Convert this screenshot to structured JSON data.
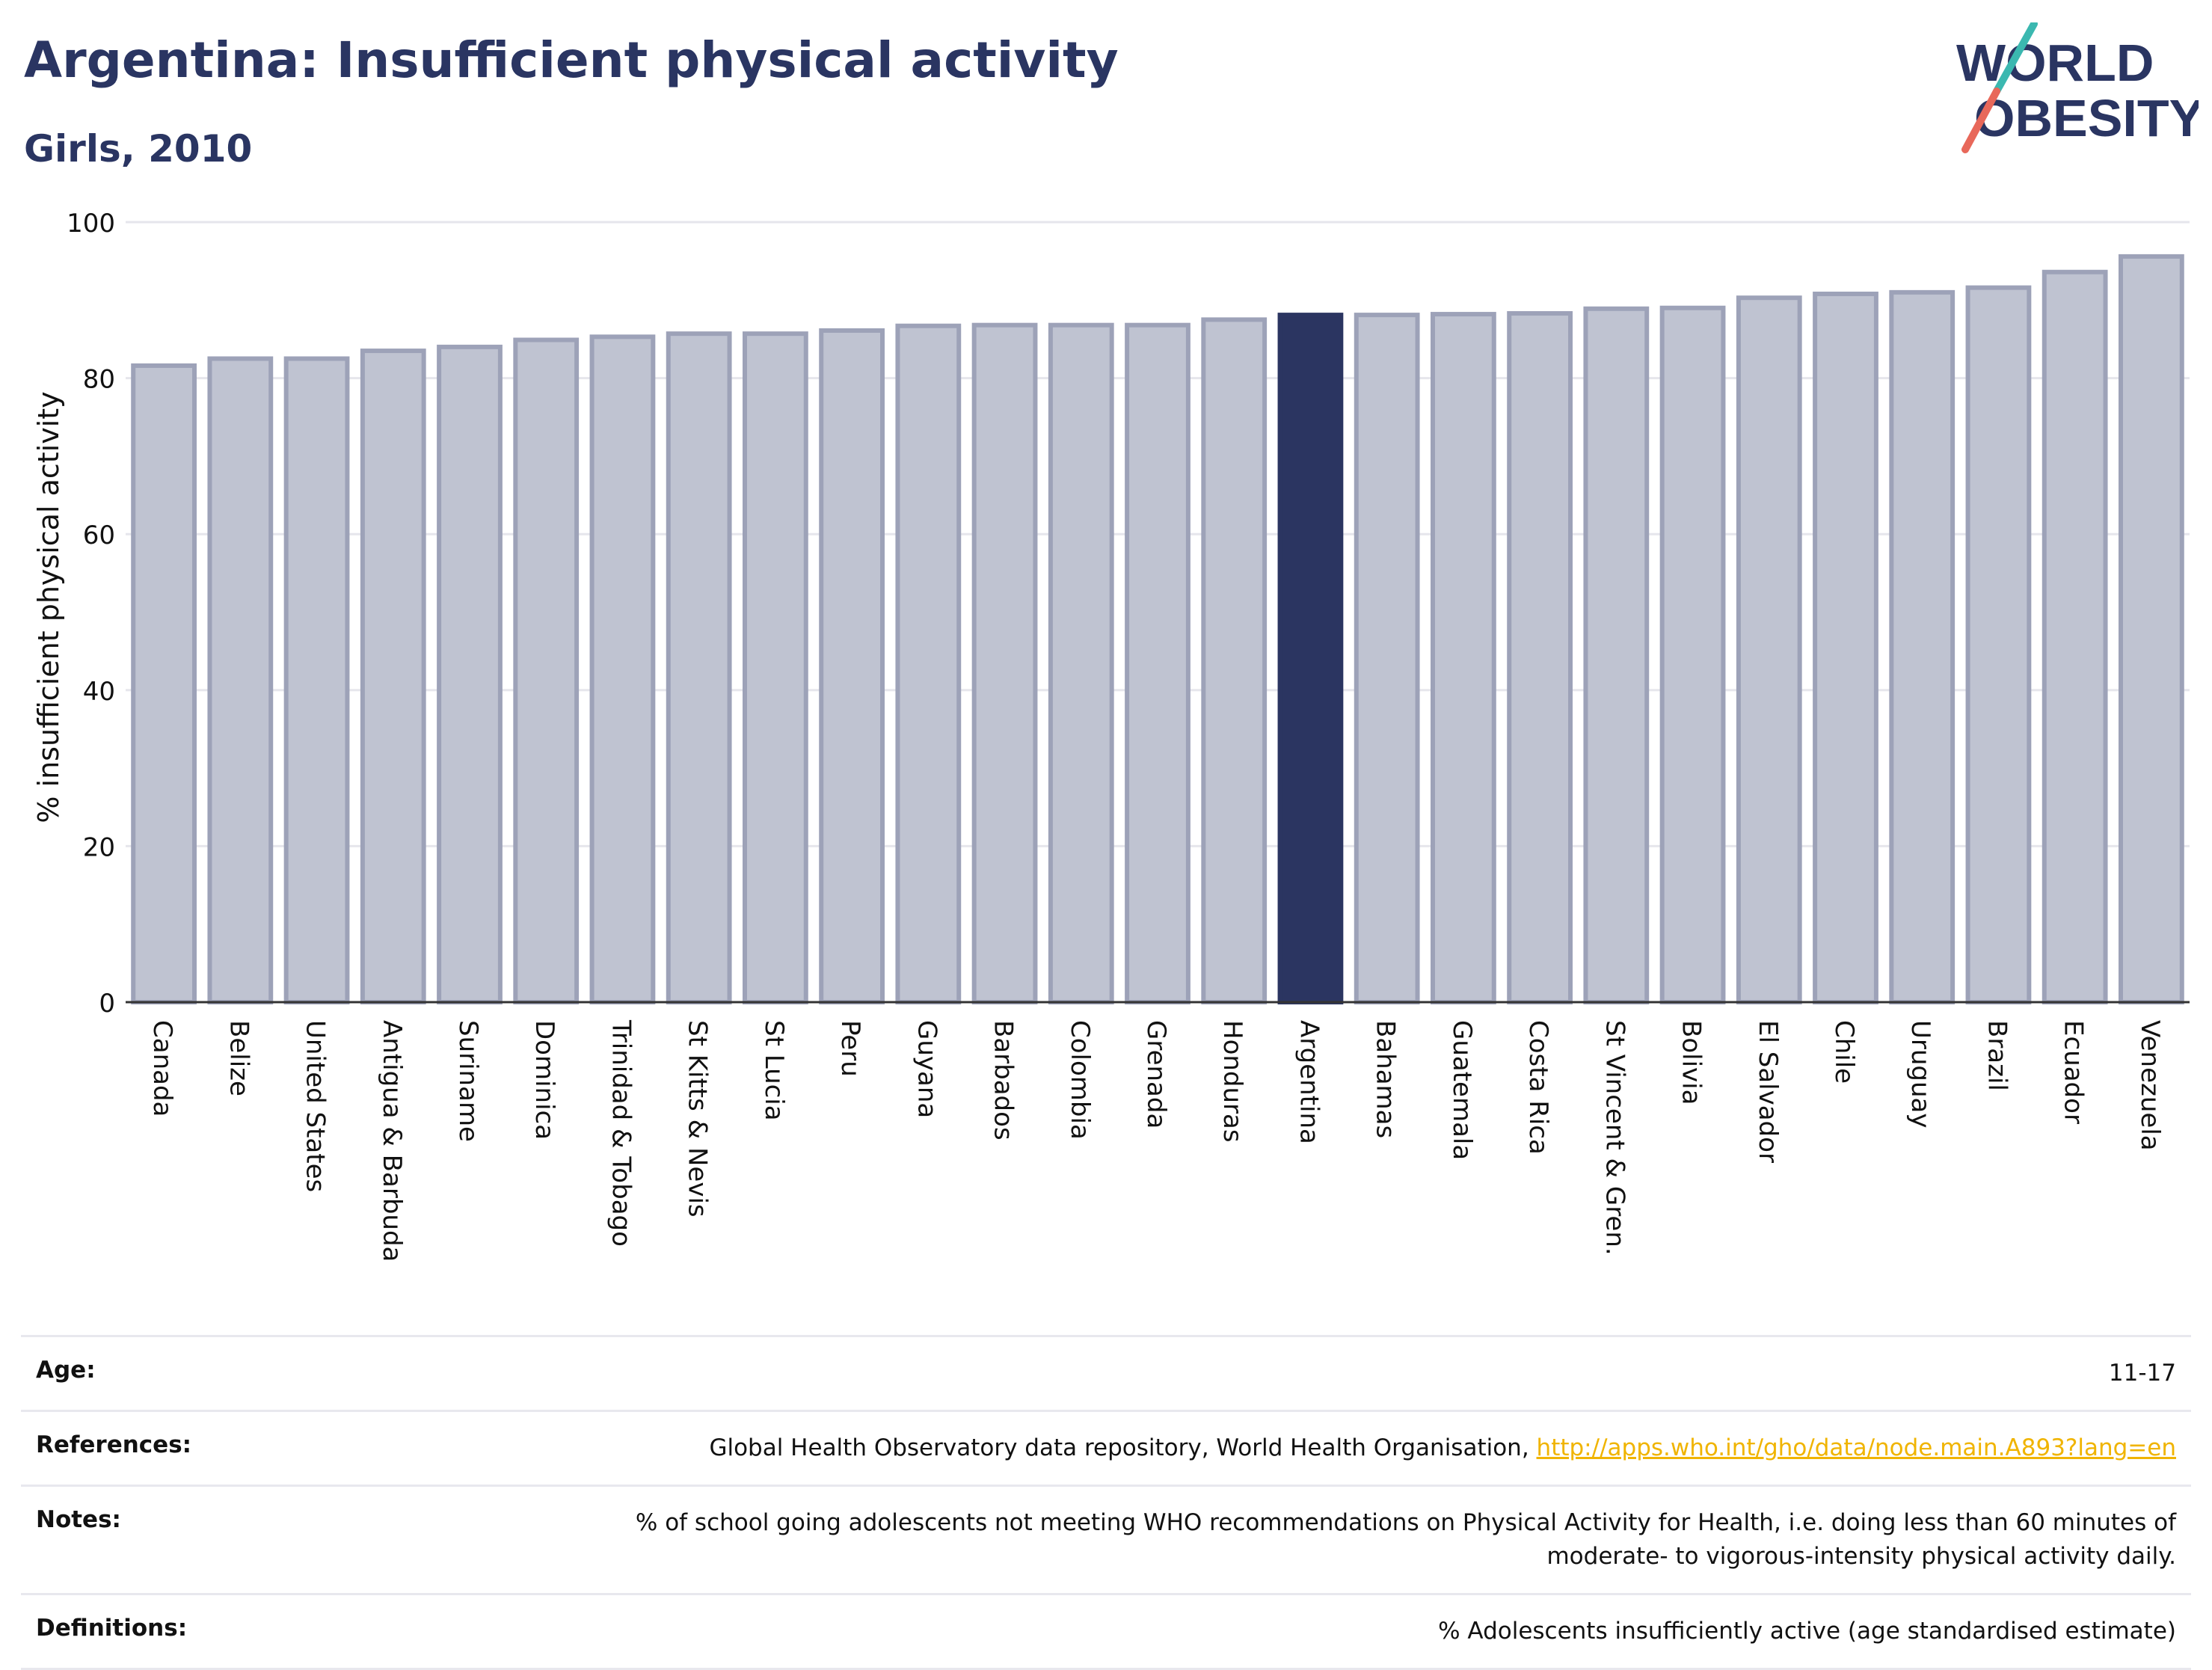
{
  "header": {
    "title": "Argentina: Insufficient physical activity",
    "subtitle": "Girls, 2010"
  },
  "logo": {
    "line1": "WORLD",
    "line2": "OBESITY",
    "accent_teal": "#3bb8b0",
    "accent_red": "#e8685a"
  },
  "colors": {
    "bar": "#bfc3d1",
    "bar_border": "#9da2b8",
    "highlight": "#2b3561",
    "axis": "#333333",
    "grid": "#e6e6ec"
  },
  "chart_data": {
    "type": "bar",
    "ylabel": "% insufficient physical activity",
    "ylim": [
      0,
      100
    ],
    "yticks": [
      0,
      20,
      40,
      60,
      80,
      100
    ],
    "highlight": "Argentina",
    "categories": [
      "Canada",
      "Belize",
      "United States",
      "Antigua & Barbuda",
      "Suriname",
      "Dominica",
      "Trinidad & Tobago",
      "St Kitts & Nevis",
      "St Lucia",
      "Peru",
      "Guyana",
      "Barbados",
      "Colombia",
      "Grenada",
      "Honduras",
      "Argentina",
      "Bahamas",
      "Guatemala",
      "Costa Rica",
      "St Vincent & Gren.",
      "Bolivia",
      "El Salvador",
      "Chile",
      "Uruguay",
      "Brazil",
      "Ecuador",
      "Venezuela"
    ],
    "values": [
      81.6,
      82.5,
      82.5,
      83.5,
      84.0,
      84.9,
      85.3,
      85.7,
      85.7,
      86.1,
      86.7,
      86.8,
      86.8,
      86.8,
      87.5,
      88.1,
      88.1,
      88.2,
      88.3,
      88.9,
      89.0,
      90.3,
      90.8,
      91.0,
      91.6,
      93.6,
      95.6
    ]
  },
  "meta": {
    "age_label": "Age:",
    "age_value": "11-17",
    "references_label": "References:",
    "references_text": "Global Health Observatory data repository, World Health Organisation, ",
    "references_link": "http://apps.who.int/gho/data/node.main.A893?lang=en",
    "notes_label": "Notes:",
    "notes_line1": "% of school going adolescents not meeting WHO recommendations on Physical Activity for Health, i.e. doing less than 60 minutes of",
    "notes_line2": "moderate- to vigorous-intensity physical activity daily.",
    "definitions_label": "Definitions:",
    "definitions_value": "% Adolescents insufficiently active (age standardised estimate)"
  }
}
